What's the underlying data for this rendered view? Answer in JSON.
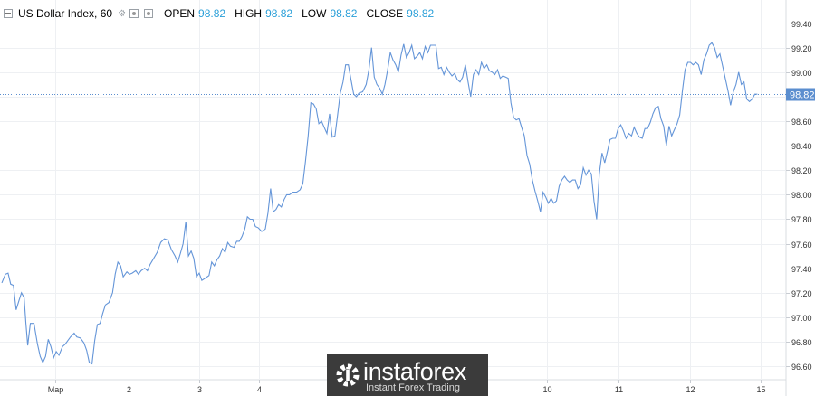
{
  "legend": {
    "symbol": "US Dollar Index, 60",
    "open_label": "OPEN",
    "open_value": "98.82",
    "high_label": "HIGH",
    "high_value": "98.82",
    "low_label": "LOW",
    "low_value": "98.82",
    "close_label": "CLOSE",
    "close_value": "98.82"
  },
  "watermark": {
    "brand": "instaforex",
    "tagline": "Instant Forex Trading"
  },
  "colors": {
    "line": "#6495d8",
    "price_label_bg": "#5b8ecf",
    "grid": "#eef0f3",
    "axis_text": "#333333",
    "legend_value": "#2a9fd8"
  },
  "chart_data": {
    "type": "line",
    "title": "US Dollar Index, 60",
    "xlabel": "",
    "ylabel": "",
    "ylim": [
      96.49,
      99.53
    ],
    "yticks": [
      96.6,
      96.8,
      97.0,
      97.2,
      97.4,
      97.6,
      97.8,
      98.0,
      98.2,
      98.4,
      98.6,
      98.8,
      99.0,
      99.2,
      99.4
    ],
    "ytick_labels": [
      "96.60",
      "96.80",
      "97.00",
      "97.20",
      "97.40",
      "97.60",
      "97.80",
      "98.00",
      "98.20",
      "98.40",
      "98.60",
      "98.80",
      "99.00",
      "99.20",
      "99.40"
    ],
    "xlim": [
      0,
      880
    ],
    "xticks": [
      {
        "x": 62,
        "label": "Мар"
      },
      {
        "x": 144,
        "label": "2"
      },
      {
        "x": 223,
        "label": "3"
      },
      {
        "x": 290,
        "label": "4"
      },
      {
        "x": 612,
        "label": "10"
      },
      {
        "x": 692,
        "label": "11"
      },
      {
        "x": 773,
        "label": "12"
      },
      {
        "x": 852,
        "label": "15"
      }
    ],
    "current_price": 98.82,
    "current_price_label": "98.82",
    "grid": true,
    "series": [
      {
        "values": [
          [
            2,
            97.28
          ],
          [
            6,
            97.35
          ],
          [
            9,
            97.36
          ],
          [
            12,
            97.27
          ],
          [
            15,
            97.26
          ],
          [
            18,
            97.06
          ],
          [
            21,
            97.13
          ],
          [
            24,
            97.2
          ],
          [
            27,
            97.16
          ],
          [
            29,
            96.95
          ],
          [
            31,
            96.77
          ],
          [
            34,
            96.95
          ],
          [
            38,
            96.95
          ],
          [
            42,
            96.78
          ],
          [
            45,
            96.68
          ],
          [
            48,
            96.63
          ],
          [
            51,
            96.68
          ],
          [
            54,
            96.82
          ],
          [
            57,
            96.76
          ],
          [
            60,
            96.67
          ],
          [
            63,
            96.72
          ],
          [
            66,
            96.69
          ],
          [
            70,
            96.76
          ],
          [
            73,
            96.78
          ],
          [
            76,
            96.81
          ],
          [
            79,
            96.84
          ],
          [
            83,
            96.87
          ],
          [
            86,
            96.84
          ],
          [
            90,
            96.83
          ],
          [
            94,
            96.79
          ],
          [
            97,
            96.73
          ],
          [
            100,
            96.63
          ],
          [
            103,
            96.62
          ],
          [
            106,
            96.81
          ],
          [
            109,
            96.94
          ],
          [
            112,
            96.95
          ],
          [
            115,
            97.03
          ],
          [
            118,
            97.1
          ],
          [
            122,
            97.12
          ],
          [
            126,
            97.2
          ],
          [
            129,
            97.35
          ],
          [
            132,
            97.45
          ],
          [
            135,
            97.42
          ],
          [
            138,
            97.33
          ],
          [
            142,
            97.37
          ],
          [
            145,
            97.35
          ],
          [
            148,
            97.36
          ],
          [
            152,
            97.38
          ],
          [
            155,
            97.35
          ],
          [
            158,
            97.38
          ],
          [
            162,
            97.4
          ],
          [
            165,
            97.38
          ],
          [
            168,
            97.43
          ],
          [
            172,
            97.48
          ],
          [
            176,
            97.53
          ],
          [
            180,
            97.61
          ],
          [
            184,
            97.64
          ],
          [
            188,
            97.63
          ],
          [
            192,
            97.55
          ],
          [
            196,
            97.5
          ],
          [
            199,
            97.45
          ],
          [
            202,
            97.52
          ],
          [
            205,
            97.6
          ],
          [
            208,
            97.78
          ],
          [
            211,
            97.5
          ],
          [
            214,
            97.54
          ],
          [
            217,
            97.48
          ],
          [
            220,
            97.33
          ],
          [
            223,
            97.36
          ],
          [
            226,
            97.3
          ],
          [
            230,
            97.32
          ],
          [
            234,
            97.34
          ],
          [
            237,
            97.45
          ],
          [
            240,
            97.42
          ],
          [
            243,
            97.47
          ],
          [
            246,
            97.5
          ],
          [
            249,
            97.56
          ],
          [
            252,
            97.53
          ],
          [
            255,
            97.61
          ],
          [
            258,
            97.58
          ],
          [
            262,
            97.57
          ],
          [
            265,
            97.62
          ],
          [
            268,
            97.62
          ],
          [
            271,
            97.66
          ],
          [
            274,
            97.72
          ],
          [
            277,
            97.82
          ],
          [
            280,
            97.8
          ],
          [
            283,
            97.8
          ],
          [
            286,
            97.74
          ],
          [
            289,
            97.73
          ],
          [
            293,
            97.7
          ],
          [
            297,
            97.72
          ],
          [
            300,
            97.85
          ],
          [
            303,
            98.05
          ],
          [
            306,
            97.86
          ],
          [
            309,
            97.88
          ],
          [
            312,
            97.92
          ],
          [
            315,
            97.9
          ],
          [
            318,
            97.96
          ],
          [
            321,
            98.0
          ],
          [
            324,
            98.0
          ],
          [
            328,
            98.02
          ],
          [
            332,
            98.02
          ],
          [
            336,
            98.04
          ],
          [
            339,
            98.09
          ],
          [
            342,
            98.27
          ],
          [
            345,
            98.48
          ],
          [
            348,
            98.75
          ],
          [
            351,
            98.74
          ],
          [
            354,
            98.7
          ],
          [
            357,
            98.58
          ],
          [
            360,
            98.6
          ],
          [
            363,
            98.55
          ],
          [
            366,
            98.5
          ],
          [
            369,
            98.66
          ],
          [
            372,
            98.47
          ],
          [
            375,
            98.48
          ],
          [
            378,
            98.65
          ],
          [
            381,
            98.83
          ],
          [
            384,
            98.92
          ],
          [
            387,
            99.06
          ],
          [
            390,
            99.06
          ],
          [
            393,
            98.94
          ],
          [
            396,
            98.82
          ],
          [
            399,
            98.8
          ],
          [
            402,
            98.83
          ],
          [
            406,
            98.84
          ],
          [
            410,
            98.9
          ],
          [
            413,
            99.02
          ],
          [
            416,
            99.2
          ],
          [
            419,
            98.96
          ],
          [
            422,
            98.9
          ],
          [
            425,
            98.87
          ],
          [
            428,
            98.82
          ],
          [
            431,
            98.9
          ],
          [
            434,
            99.02
          ],
          [
            437,
            99.16
          ],
          [
            440,
            99.1
          ],
          [
            443,
            99.06
          ],
          [
            446,
            99.0
          ],
          [
            449,
            99.14
          ],
          [
            452,
            99.23
          ],
          [
            455,
            99.12
          ],
          [
            458,
            99.16
          ],
          [
            461,
            99.22
          ],
          [
            464,
            99.11
          ],
          [
            467,
            99.13
          ],
          [
            470,
            99.16
          ],
          [
            473,
            99.11
          ],
          [
            476,
            99.21
          ],
          [
            479,
            99.16
          ],
          [
            482,
            99.22
          ],
          [
            485,
            99.22
          ],
          [
            488,
            99.22
          ],
          [
            491,
            99.03
          ],
          [
            494,
            99.04
          ],
          [
            497,
            98.98
          ],
          [
            500,
            99.04
          ],
          [
            503,
            99.0
          ],
          [
            506,
            98.97
          ],
          [
            509,
            98.99
          ],
          [
            512,
            98.94
          ],
          [
            515,
            98.92
          ],
          [
            518,
            98.96
          ],
          [
            521,
            99.06
          ],
          [
            524,
            98.92
          ],
          [
            527,
            98.8
          ],
          [
            530,
            98.98
          ],
          [
            533,
            99.02
          ],
          [
            536,
            98.98
          ],
          [
            539,
            99.08
          ],
          [
            542,
            99.03
          ],
          [
            545,
            99.06
          ],
          [
            548,
            99.01
          ],
          [
            551,
            99.0
          ],
          [
            554,
            98.98
          ],
          [
            557,
            99.02
          ],
          [
            560,
            98.95
          ],
          [
            563,
            98.97
          ],
          [
            566,
            98.96
          ],
          [
            569,
            98.95
          ],
          [
            572,
            98.75
          ],
          [
            575,
            98.63
          ],
          [
            578,
            98.61
          ],
          [
            581,
            98.62
          ],
          [
            584,
            98.55
          ],
          [
            587,
            98.48
          ],
          [
            590,
            98.32
          ],
          [
            593,
            98.25
          ],
          [
            596,
            98.12
          ],
          [
            599,
            98.03
          ],
          [
            602,
            97.95
          ],
          [
            605,
            97.86
          ],
          [
            608,
            98.02
          ],
          [
            611,
            97.98
          ],
          [
            614,
            97.93
          ],
          [
            617,
            97.97
          ],
          [
            620,
            97.93
          ],
          [
            623,
            97.95
          ],
          [
            626,
            98.07
          ],
          [
            629,
            98.12
          ],
          [
            632,
            98.15
          ],
          [
            635,
            98.12
          ],
          [
            638,
            98.1
          ],
          [
            641,
            98.12
          ],
          [
            644,
            98.12
          ],
          [
            647,
            98.05
          ],
          [
            650,
            98.08
          ],
          [
            653,
            98.22
          ],
          [
            656,
            98.16
          ],
          [
            659,
            98.2
          ],
          [
            662,
            98.17
          ],
          [
            665,
            97.95
          ],
          [
            668,
            97.8
          ],
          [
            671,
            98.17
          ],
          [
            674,
            98.34
          ],
          [
            677,
            98.26
          ],
          [
            680,
            98.35
          ],
          [
            683,
            98.45
          ],
          [
            686,
            98.46
          ],
          [
            689,
            98.46
          ],
          [
            692,
            98.54
          ],
          [
            695,
            98.57
          ],
          [
            698,
            98.52
          ],
          [
            701,
            98.46
          ],
          [
            704,
            98.5
          ],
          [
            707,
            98.48
          ],
          [
            710,
            98.55
          ],
          [
            713,
            98.5
          ],
          [
            716,
            98.47
          ],
          [
            719,
            98.46
          ],
          [
            722,
            98.54
          ],
          [
            725,
            98.54
          ],
          [
            728,
            98.59
          ],
          [
            731,
            98.66
          ],
          [
            734,
            98.71
          ],
          [
            737,
            98.72
          ],
          [
            740,
            98.62
          ],
          [
            743,
            98.56
          ],
          [
            746,
            98.4
          ],
          [
            749,
            98.56
          ],
          [
            752,
            98.48
          ],
          [
            755,
            98.53
          ],
          [
            758,
            98.58
          ],
          [
            761,
            98.65
          ],
          [
            764,
            98.85
          ],
          [
            767,
            99.02
          ],
          [
            770,
            99.08
          ],
          [
            773,
            99.08
          ],
          [
            776,
            99.06
          ],
          [
            779,
            99.08
          ],
          [
            782,
            99.06
          ],
          [
            785,
            98.98
          ],
          [
            788,
            99.1
          ],
          [
            791,
            99.15
          ],
          [
            794,
            99.22
          ],
          [
            797,
            99.24
          ],
          [
            800,
            99.2
          ],
          [
            803,
            99.12
          ],
          [
            806,
            99.15
          ],
          [
            809,
            99.05
          ],
          [
            812,
            98.95
          ],
          [
            815,
            98.85
          ],
          [
            818,
            98.73
          ],
          [
            821,
            98.84
          ],
          [
            824,
            98.9
          ],
          [
            827,
            99.0
          ],
          [
            830,
            98.9
          ],
          [
            833,
            98.92
          ],
          [
            836,
            98.78
          ],
          [
            839,
            98.76
          ],
          [
            842,
            98.78
          ],
          [
            845,
            98.82
          ],
          [
            848,
            98.82
          ]
        ]
      }
    ]
  }
}
